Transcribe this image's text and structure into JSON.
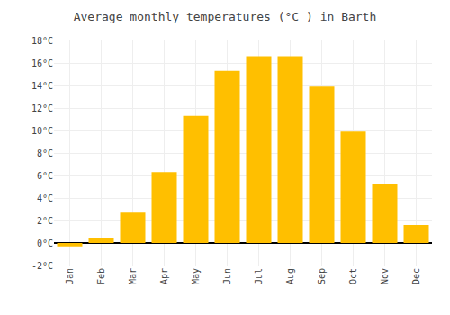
{
  "chart_data": {
    "type": "bar",
    "title": "Average monthly temperatures (°C ) in Barth",
    "categories": [
      "Jan",
      "Feb",
      "Mar",
      "Apr",
      "May",
      "Jun",
      "Jul",
      "Aug",
      "Sep",
      "Oct",
      "Nov",
      "Dec"
    ],
    "values": [
      -0.3,
      0.4,
      2.7,
      6.3,
      11.3,
      15.3,
      16.6,
      16.6,
      13.9,
      9.9,
      5.2,
      1.6
    ],
    "color": "#FFBF00",
    "ylim": [
      -2,
      18
    ],
    "yticks": [
      {
        "value": -2,
        "label": "-2°C"
      },
      {
        "value": 0,
        "label": "0°C"
      },
      {
        "value": 2,
        "label": "2°C"
      },
      {
        "value": 4,
        "label": "4°C"
      },
      {
        "value": 6,
        "label": "6°C"
      },
      {
        "value": 8,
        "label": "8°C"
      },
      {
        "value": 10,
        "label": "10°C"
      },
      {
        "value": 12,
        "label": "12°C"
      },
      {
        "value": 14,
        "label": "14°C"
      },
      {
        "value": 16,
        "label": "16°C"
      },
      {
        "value": 18,
        "label": "18°C"
      }
    ],
    "grid": true
  }
}
